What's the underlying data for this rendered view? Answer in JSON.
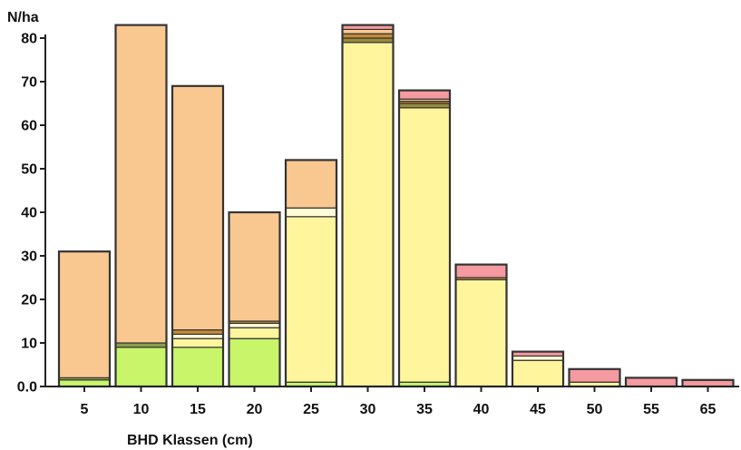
{
  "chart_data": {
    "type": "bar",
    "stacked": true,
    "title": "",
    "ylabel": "N/ha",
    "xlabel": "BHD Klassen (cm)",
    "ylim": [
      0,
      85
    ],
    "yticks": [
      0,
      10,
      20,
      30,
      40,
      50,
      60,
      70,
      80
    ],
    "ytick_labels": [
      "0.0",
      "10",
      "20",
      "30",
      "40",
      "50",
      "60",
      "70",
      "80"
    ],
    "categories": [
      "5",
      "10",
      "15",
      "20",
      "25",
      "30",
      "35",
      "40",
      "45",
      "50",
      "55",
      "65"
    ],
    "series": [
      {
        "color": "#c8f56a",
        "values": [
          1.5,
          9,
          9,
          11,
          1,
          0,
          1,
          0,
          0,
          0,
          0,
          0
        ]
      },
      {
        "color": "#8aa04a",
        "values": [
          0.5,
          1,
          0,
          0,
          0,
          0,
          0,
          0,
          0,
          0,
          0,
          0
        ]
      },
      {
        "color": "#fff59d",
        "values": [
          0,
          0,
          2,
          2.5,
          38,
          79,
          63,
          24.5,
          6,
          1,
          0,
          0
        ]
      },
      {
        "color": "#9a8a3a",
        "values": [
          0,
          0,
          0,
          0,
          0,
          1,
          1,
          0,
          0,
          0,
          0,
          0
        ]
      },
      {
        "color": "#fffbd6",
        "values": [
          0,
          0,
          1,
          1,
          2,
          0,
          0,
          0,
          1,
          0,
          0,
          0
        ]
      },
      {
        "color": "#c48a3a",
        "values": [
          0,
          0,
          1,
          0.5,
          0,
          1,
          0.5,
          0.5,
          0,
          0,
          0,
          0
        ]
      },
      {
        "color": "#f9c891",
        "values": [
          29,
          73,
          56,
          25,
          11,
          1,
          0.5,
          0,
          0,
          0,
          0,
          0
        ]
      },
      {
        "color": "#f59aa0",
        "values": [
          0,
          0,
          0,
          0,
          0,
          1,
          2,
          3,
          1,
          3,
          2,
          1.5
        ]
      }
    ]
  }
}
